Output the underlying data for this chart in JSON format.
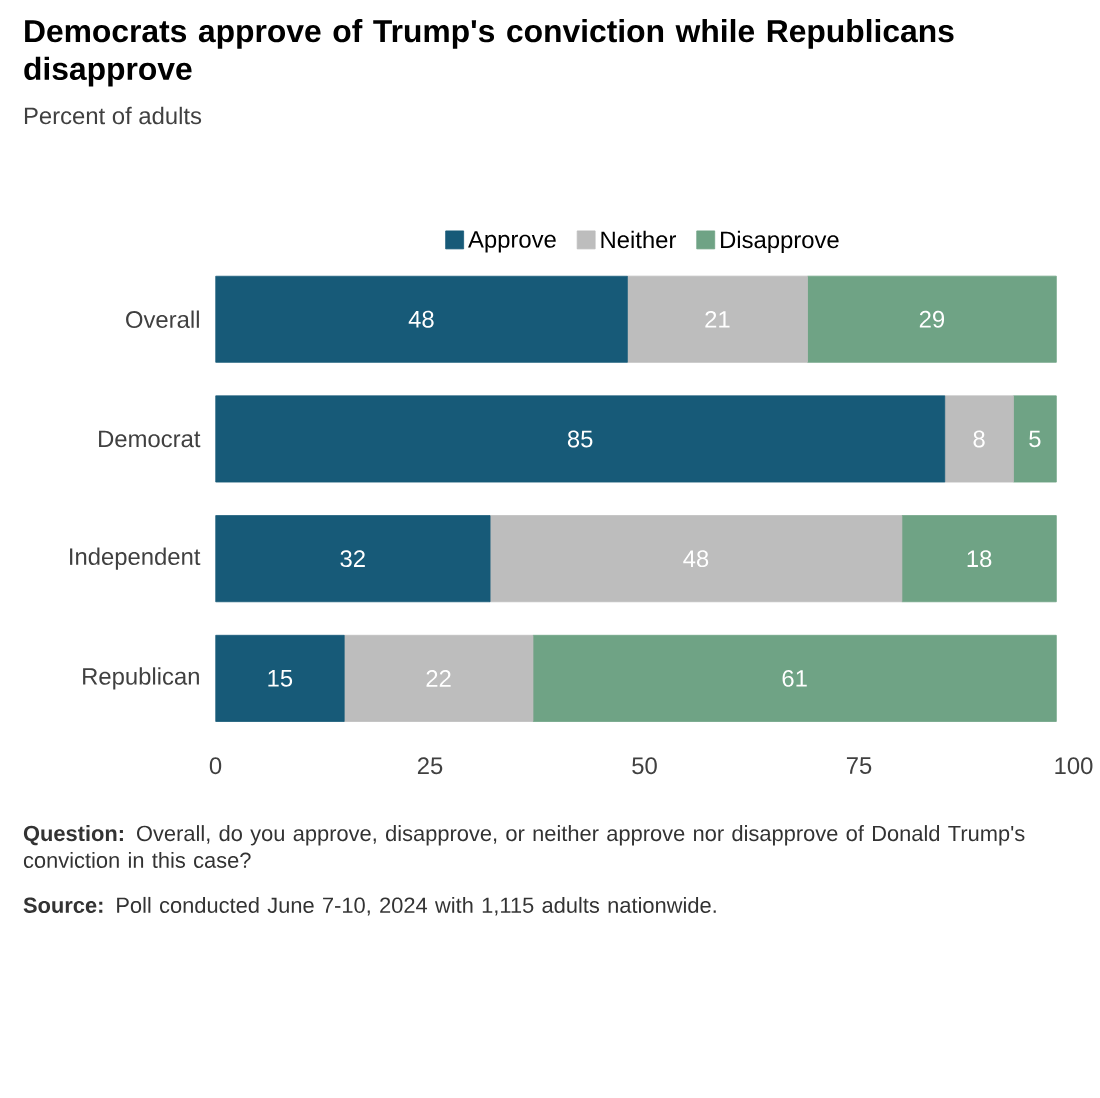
{
  "chart_data": {
    "type": "bar",
    "orientation": "horizontal",
    "stacked": true,
    "data_labels": true,
    "legend": "top",
    "grid": false,
    "title": "Democrats approve of Trump's conviction while Republicans disapprove",
    "subtitle": "Percent of adults",
    "categories": [
      "Overall",
      "Democrat",
      "Independent",
      "Republican"
    ],
    "series": [
      {
        "name": "Approve",
        "color": "#175a78",
        "values": [
          48,
          85,
          32,
          15
        ]
      },
      {
        "name": "Neither",
        "color": "#bdbdbd",
        "values": [
          21,
          8,
          48,
          22
        ]
      },
      {
        "name": "Disapprove",
        "color": "#6fa385",
        "values": [
          29,
          5,
          18,
          61
        ]
      }
    ],
    "xlim": [
      0,
      100
    ],
    "xticks": [
      0,
      25,
      50,
      75,
      100
    ],
    "annotations": [
      "**Question:** Overall, do you approve, disapprove, or neither approve nor disapprove of Donald Trump's conviction in this case?",
      "**Source:** Poll conducted June 7-10, 2024 with 1,115 adults nationwide."
    ]
  }
}
